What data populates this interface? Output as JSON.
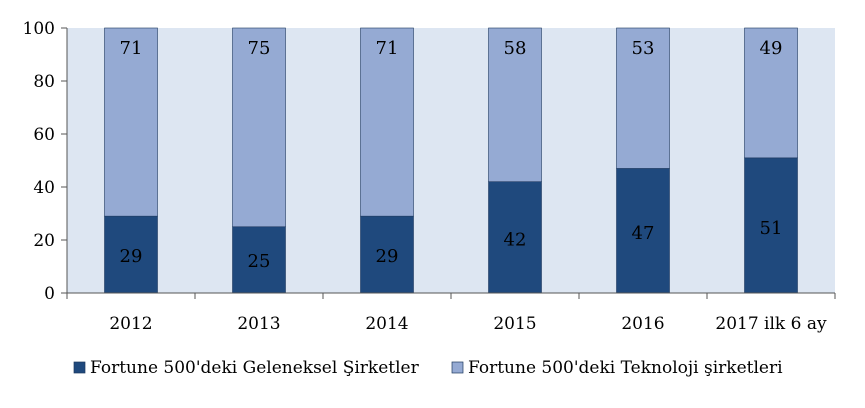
{
  "chart_data": {
    "type": "bar",
    "stacked": true,
    "categories": [
      "2012",
      "2013",
      "2014",
      "2015",
      "2016",
      "2017 ilk 6 ay"
    ],
    "series": [
      {
        "name": "Fortune 500'deki Geleneksel Şirketler",
        "values": [
          29,
          25,
          29,
          42,
          47,
          51
        ],
        "color": "#1f497d"
      },
      {
        "name": "Fortune 500'deki Teknoloji şirketleri",
        "values": [
          71,
          75,
          71,
          58,
          53,
          49
        ],
        "color": "#95aad3"
      }
    ],
    "yticks": [
      0,
      20,
      40,
      60,
      80,
      100
    ],
    "ylim": [
      0,
      100
    ],
    "grid": false,
    "plot_background": "#dde6f2",
    "legend_position": "bottom",
    "show_data_labels": true
  }
}
